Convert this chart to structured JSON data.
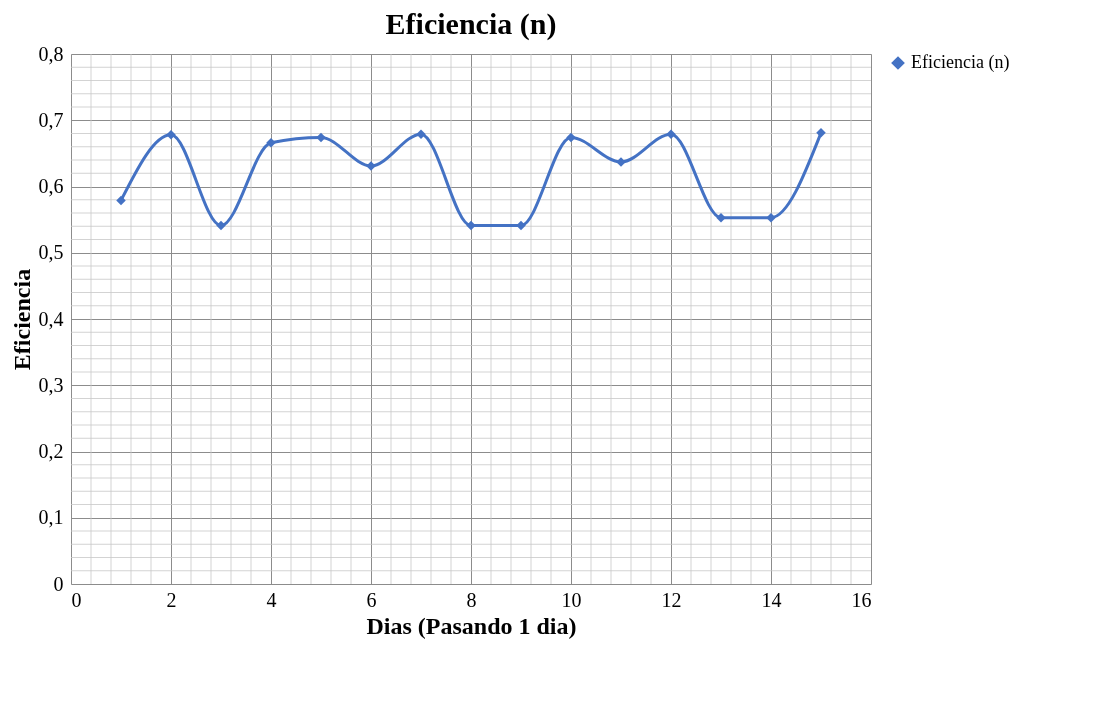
{
  "chart_data": {
    "type": "line",
    "title": "Eficiencia (n)",
    "xlabel": "Dias (Pasando 1 dia)",
    "ylabel": "Eficiencia",
    "x": [
      1,
      2,
      3,
      4,
      5,
      6,
      7,
      8,
      9,
      10,
      11,
      12,
      13,
      14,
      15
    ],
    "series": [
      {
        "name": "Eficiencia (n)",
        "color": "#4472c4",
        "values": [
          0.579,
          0.678,
          0.541,
          0.666,
          0.674,
          0.631,
          0.679,
          0.541,
          0.541,
          0.674,
          0.637,
          0.679,
          0.553,
          0.553,
          0.681
        ]
      }
    ],
    "xlim": [
      0,
      16
    ],
    "xticks": [
      0,
      2,
      4,
      6,
      8,
      10,
      12,
      14,
      16
    ],
    "ylim": [
      0,
      0.8
    ],
    "yticks": [
      {
        "value": 0,
        "label": "0"
      },
      {
        "value": 0.1,
        "label": "0,1"
      },
      {
        "value": 0.2,
        "label": "0,2"
      },
      {
        "value": 0.3,
        "label": "0,3"
      },
      {
        "value": 0.4,
        "label": "0,4"
      },
      {
        "value": 0.5,
        "label": "0,5"
      },
      {
        "value": 0.6,
        "label": "0,6"
      },
      {
        "value": 0.7,
        "label": "0,7"
      },
      {
        "value": 0.8,
        "label": "0,8"
      }
    ],
    "grid": true,
    "legend": "right",
    "marker": "diamond",
    "line_style": "solid"
  }
}
